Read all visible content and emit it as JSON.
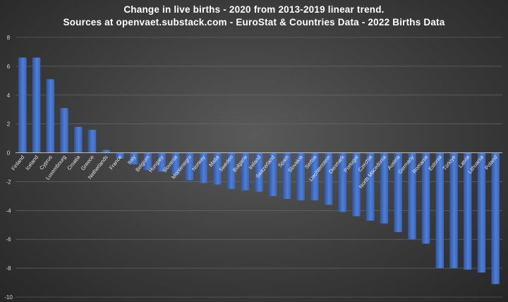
{
  "chart_data": {
    "type": "bar",
    "title": "Change in live births - 2020 from 2013-2019 linear trend.",
    "subtitle": "Sources at openvaet.substack.com - EuroStat & Countries Data - 2022 Births Data",
    "xlabel": "",
    "ylabel": "",
    "ylim": [
      -10,
      8
    ],
    "yticks": [
      "8",
      "6",
      "4",
      "2",
      "0",
      "-2",
      "-4",
      "-6",
      "-8",
      "-10"
    ],
    "grid": true,
    "bar_color": "#4472c4",
    "categories": [
      "Finland",
      "Iceland",
      "Cyprus",
      "Luxembourg",
      "Croatia",
      "Greece",
      "Netherlands",
      "France",
      "Italy",
      "Belgium",
      "Hungary",
      "Slovenia",
      "Montenegro",
      "Norway",
      "Malta",
      "Sweden",
      "Bulgaria",
      "Ireland",
      "Switzerland",
      "Spain",
      "Slovakia",
      "Serbia",
      "Liechtenstein",
      "Denmark",
      "Portugal",
      "Czechia",
      "North Macedonia",
      "Austria",
      "Germany",
      "Romania",
      "Estonia",
      "Türkiye",
      "Latvia",
      "Lithuania",
      "Poland"
    ],
    "values": [
      6.6,
      6.6,
      5.1,
      3.1,
      1.8,
      1.6,
      0.2,
      -0.4,
      -0.8,
      -1.2,
      -1.3,
      -1.5,
      -1.9,
      -2.1,
      -2.2,
      -2.5,
      -2.6,
      -2.7,
      -3.0,
      -3.2,
      -3.3,
      -3.3,
      -3.6,
      -4.1,
      -4.4,
      -4.7,
      -4.9,
      -5.5,
      -6.0,
      -6.3,
      -8.0,
      -8.0,
      -8.1,
      -8.3,
      -9.1
    ]
  }
}
